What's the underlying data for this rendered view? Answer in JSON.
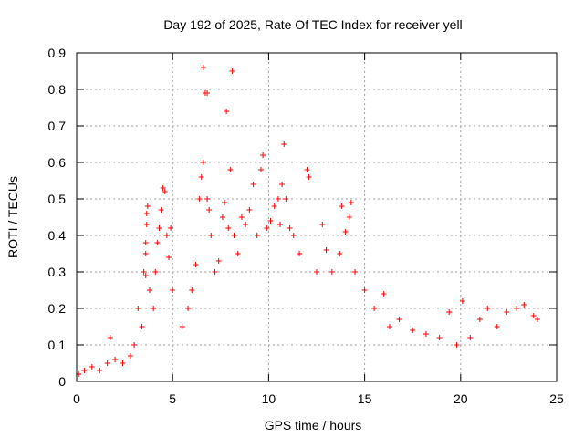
{
  "chart_data": {
    "type": "scatter",
    "title": "Day 192 of 2025, Rate Of TEC Index for receiver yell",
    "xlabel": "GPS time / hours",
    "ylabel": "ROTI / TECUs",
    "xlim": [
      0,
      25
    ],
    "ylim": [
      0,
      0.9
    ],
    "x_ticks": [
      "0",
      "5",
      "10",
      "15",
      "20",
      "25"
    ],
    "y_ticks": [
      "0",
      "0.1",
      "0.2",
      "0.3",
      "0.4",
      "0.5",
      "0.6",
      "0.7",
      "0.8",
      "0.9"
    ],
    "grid": true,
    "marker": "+",
    "color": "#ff0000",
    "series": [
      {
        "points": [
          [
            0.1,
            0.02
          ],
          [
            0.4,
            0.03
          ],
          [
            0.8,
            0.04
          ],
          [
            1.2,
            0.03
          ],
          [
            1.6,
            0.05
          ],
          [
            1.75,
            0.12
          ],
          [
            2.0,
            0.06
          ],
          [
            2.4,
            0.05
          ],
          [
            2.8,
            0.07
          ],
          [
            3.0,
            0.1
          ],
          [
            3.2,
            0.2
          ],
          [
            3.4,
            0.15
          ],
          [
            3.5,
            0.3
          ],
          [
            3.6,
            0.29
          ],
          [
            3.6,
            0.35
          ],
          [
            3.6,
            0.38
          ],
          [
            3.65,
            0.43
          ],
          [
            3.65,
            0.46
          ],
          [
            3.7,
            0.48
          ],
          [
            3.8,
            0.25
          ],
          [
            4.0,
            0.2
          ],
          [
            4.1,
            0.3
          ],
          [
            4.2,
            0.38
          ],
          [
            4.3,
            0.42
          ],
          [
            4.4,
            0.47
          ],
          [
            4.5,
            0.53
          ],
          [
            4.6,
            0.52
          ],
          [
            4.7,
            0.4
          ],
          [
            4.8,
            0.34
          ],
          [
            4.9,
            0.42
          ],
          [
            5.0,
            0.25
          ],
          [
            5.5,
            0.15
          ],
          [
            5.8,
            0.2
          ],
          [
            6.0,
            0.25
          ],
          [
            6.2,
            0.32
          ],
          [
            6.4,
            0.5
          ],
          [
            6.5,
            0.56
          ],
          [
            6.6,
            0.6
          ],
          [
            6.6,
            0.86
          ],
          [
            6.7,
            0.79
          ],
          [
            6.8,
            0.79
          ],
          [
            6.8,
            0.5
          ],
          [
            6.9,
            0.47
          ],
          [
            7.0,
            0.4
          ],
          [
            7.2,
            0.3
          ],
          [
            7.4,
            0.33
          ],
          [
            7.6,
            0.45
          ],
          [
            7.7,
            0.49
          ],
          [
            7.8,
            0.74
          ],
          [
            7.9,
            0.42
          ],
          [
            8.0,
            0.58
          ],
          [
            8.1,
            0.85
          ],
          [
            8.2,
            0.4
          ],
          [
            8.4,
            0.35
          ],
          [
            8.6,
            0.45
          ],
          [
            8.8,
            0.43
          ],
          [
            9.0,
            0.47
          ],
          [
            9.2,
            0.54
          ],
          [
            9.4,
            0.4
          ],
          [
            9.6,
            0.58
          ],
          [
            9.7,
            0.62
          ],
          [
            9.9,
            0.42
          ],
          [
            10.1,
            0.44
          ],
          [
            10.3,
            0.48
          ],
          [
            10.5,
            0.5
          ],
          [
            10.6,
            0.43
          ],
          [
            10.7,
            0.54
          ],
          [
            10.8,
            0.65
          ],
          [
            10.9,
            0.5
          ],
          [
            11.1,
            0.42
          ],
          [
            11.3,
            0.4
          ],
          [
            11.6,
            0.35
          ],
          [
            12.0,
            0.58
          ],
          [
            12.1,
            0.56
          ],
          [
            12.5,
            0.3
          ],
          [
            12.8,
            0.43
          ],
          [
            13.0,
            0.36
          ],
          [
            13.3,
            0.3
          ],
          [
            13.7,
            0.35
          ],
          [
            13.8,
            0.48
          ],
          [
            14.0,
            0.41
          ],
          [
            14.2,
            0.45
          ],
          [
            14.3,
            0.49
          ],
          [
            14.5,
            0.3
          ],
          [
            15.0,
            0.25
          ],
          [
            15.5,
            0.2
          ],
          [
            16.0,
            0.24
          ],
          [
            16.3,
            0.15
          ],
          [
            16.8,
            0.17
          ],
          [
            17.5,
            0.14
          ],
          [
            18.2,
            0.13
          ],
          [
            18.9,
            0.12
          ],
          [
            19.4,
            0.19
          ],
          [
            19.8,
            0.1
          ],
          [
            20.1,
            0.22
          ],
          [
            20.5,
            0.12
          ],
          [
            21.0,
            0.17
          ],
          [
            21.4,
            0.2
          ],
          [
            21.9,
            0.15
          ],
          [
            22.4,
            0.19
          ],
          [
            22.9,
            0.2
          ],
          [
            23.3,
            0.21
          ],
          [
            23.8,
            0.18
          ],
          [
            24.0,
            0.17
          ]
        ]
      }
    ]
  }
}
